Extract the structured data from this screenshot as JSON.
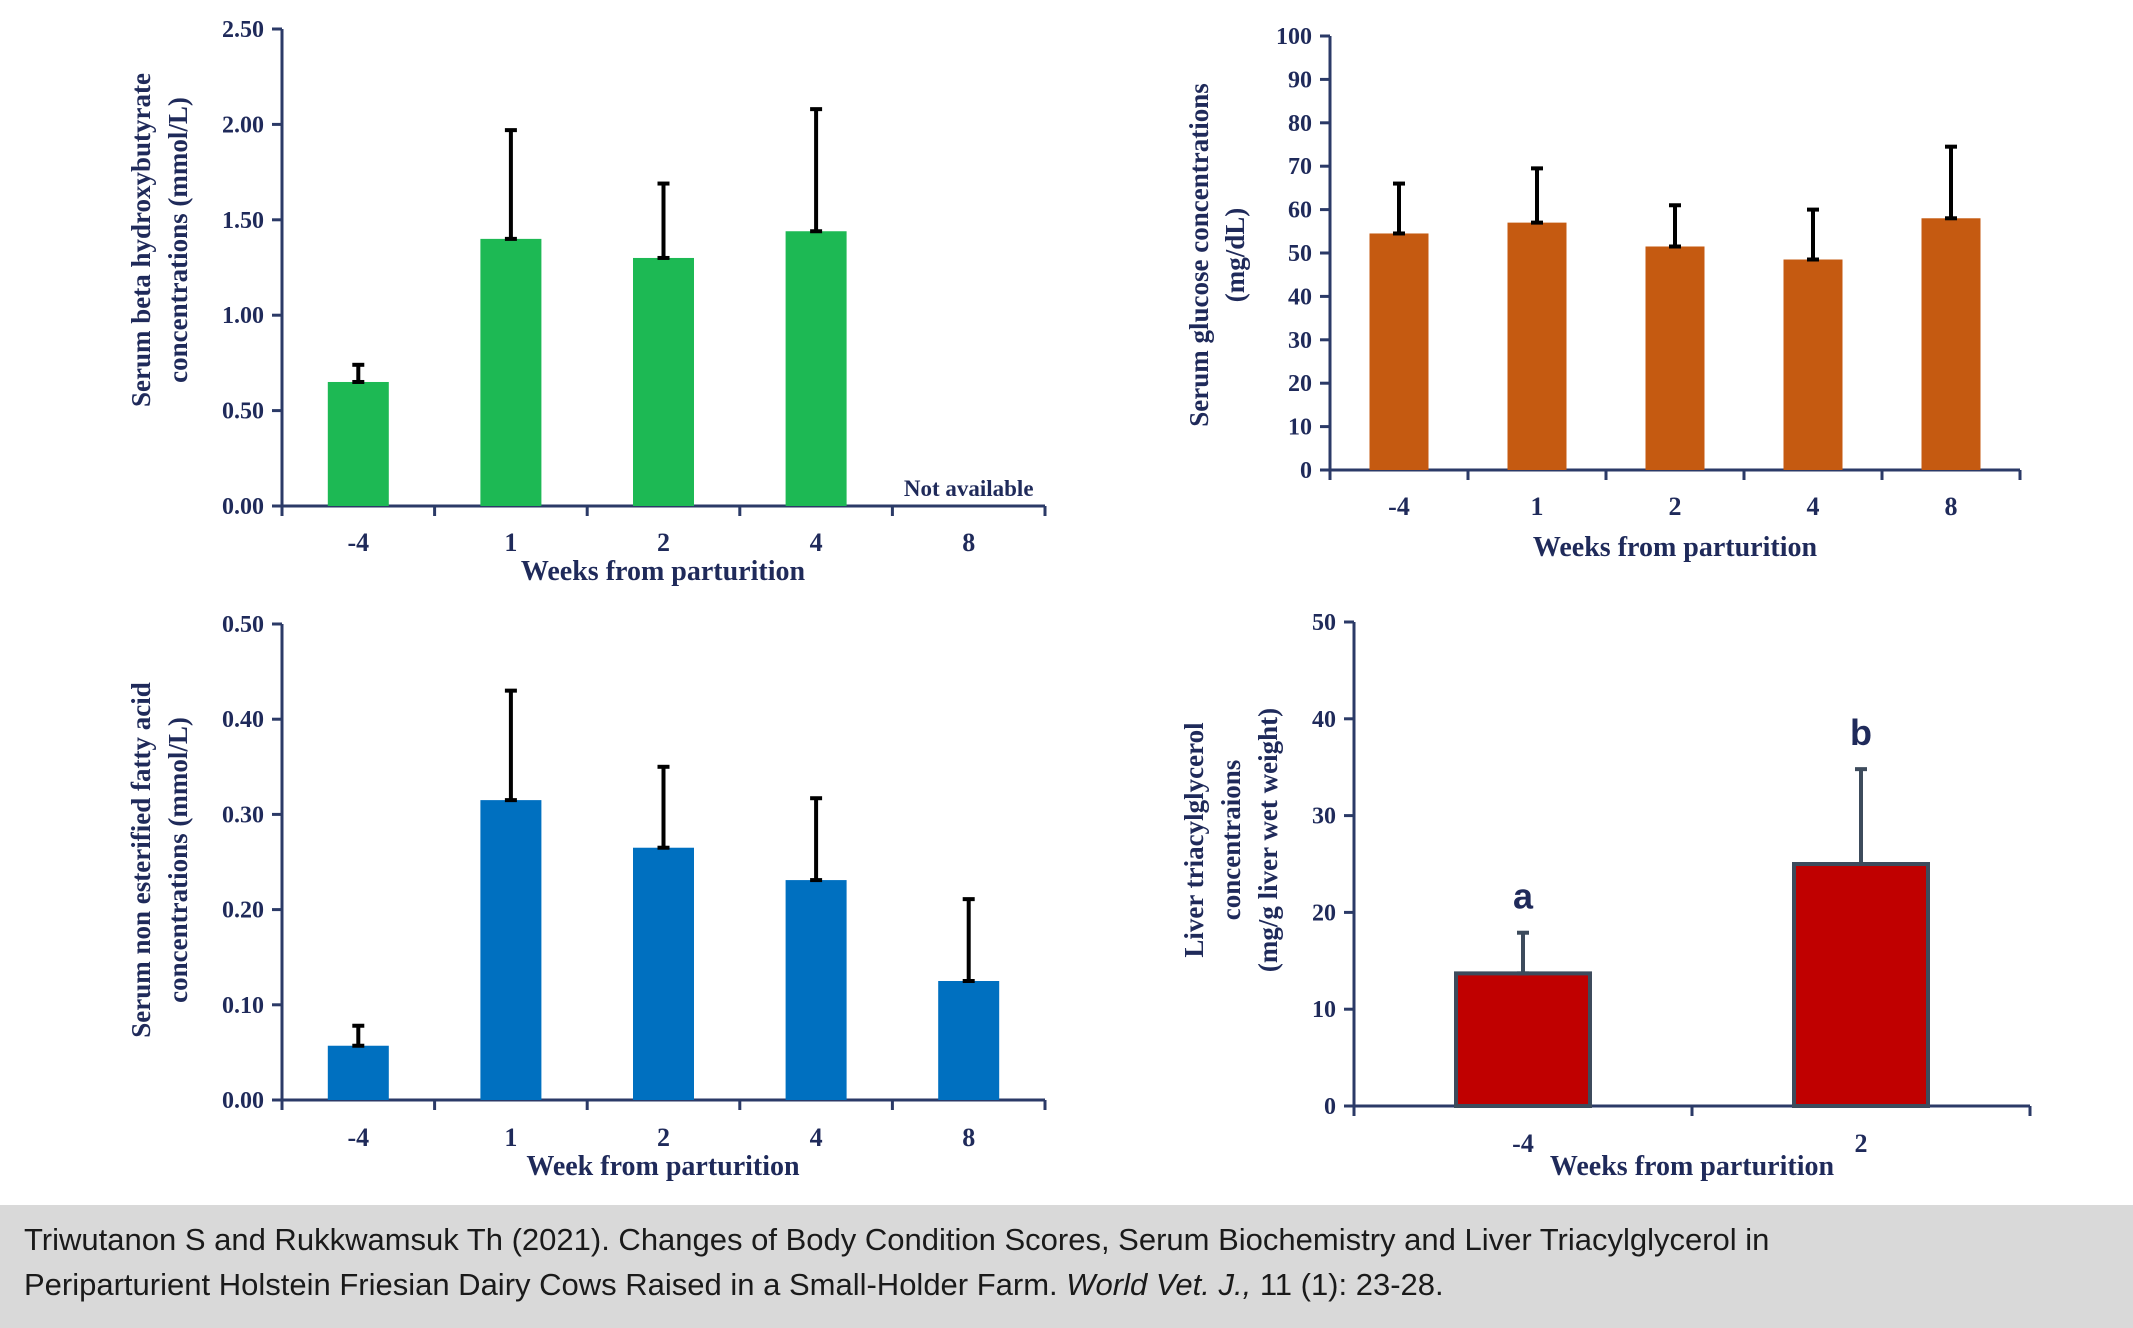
{
  "chart_data": [
    {
      "type": "bar",
      "id": "bhb",
      "categories": [
        "-4",
        "1",
        "2",
        "4",
        "8"
      ],
      "values": [
        0.65,
        1.4,
        1.3,
        1.44,
        null
      ],
      "errors": [
        0.09,
        0.57,
        0.39,
        0.64,
        null
      ],
      "ylim": [
        0,
        2.5
      ],
      "yticks": [
        "0.00",
        "0.50",
        "1.00",
        "1.50",
        "2.00",
        "2.50"
      ],
      "ylabel_lines": [
        "Serum beta hydroxybutyrate",
        "concentrations (mmol/L)"
      ],
      "xlabel": "Weeks from parturition",
      "annotation": "Not available",
      "color": "#1db954"
    },
    {
      "type": "bar",
      "id": "glucose",
      "categories": [
        "-4",
        "1",
        "2",
        "4",
        "8"
      ],
      "values": [
        54.5,
        57,
        51.5,
        48.5,
        58
      ],
      "errors": [
        11.5,
        12.5,
        9.5,
        11.5,
        16.5
      ],
      "ylim": [
        0,
        100
      ],
      "yticks": [
        "0",
        "10",
        "20",
        "30",
        "40",
        "50",
        "60",
        "70",
        "80",
        "90",
        "100"
      ],
      "ylabel_lines": [
        "Serum glucose concentrations",
        "(mg/dL)"
      ],
      "xlabel": "Weeks from parturition",
      "color": "#c55a11"
    },
    {
      "type": "bar",
      "id": "nefa",
      "categories": [
        "-4",
        "1",
        "2",
        "4",
        "8"
      ],
      "values": [
        0.057,
        0.315,
        0.265,
        0.231,
        0.125
      ],
      "errors": [
        0.021,
        0.115,
        0.085,
        0.086,
        0.086
      ],
      "ylim": [
        0,
        0.5
      ],
      "yticks": [
        "0.00",
        "0.10",
        "0.20",
        "0.30",
        "0.40",
        "0.50"
      ],
      "ylabel_lines": [
        "Serum non esterified fatty acid",
        "concentrations (mmol/L)"
      ],
      "xlabel": "Week from parturition",
      "color": "#0070c0"
    },
    {
      "type": "bar",
      "id": "liver",
      "categories": [
        "-4",
        "2"
      ],
      "values": [
        13.7,
        25
      ],
      "errors": [
        4.2,
        9.8
      ],
      "letters": [
        "a",
        "b"
      ],
      "ylim": [
        0,
        50
      ],
      "yticks": [
        "0",
        "10",
        "20",
        "30",
        "40",
        "50"
      ],
      "ylabel_lines": [
        "Liver triacylglycerol",
        "concentraions",
        "(mg/g liver wet weight)"
      ],
      "xlabel": "Weeks from parturition",
      "color": "#c00000"
    }
  ],
  "citation": {
    "line1": "Triwutanon S and Rukkwamsuk Th (2021). Changes of Body Condition Scores, Serum Biochemistry and Liver Triacylglycerol in",
    "line2_pre": "Periparturient Holstein Friesian Dairy Cows Raised in a Small-Holder Farm.",
    "journal": "World Vet. J.,",
    "line2_post": "11 (1): 23-28."
  }
}
